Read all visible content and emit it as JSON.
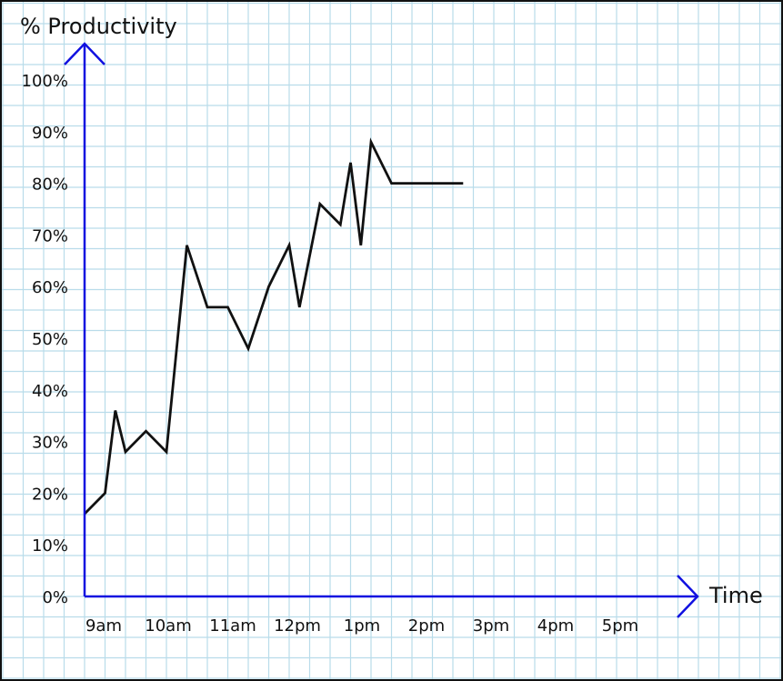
{
  "colors": {
    "grid": "#b9dcea",
    "axis": "#1010e0",
    "line": "#111111",
    "border": "#111111"
  },
  "chart_data": {
    "type": "line",
    "title": "",
    "ylabel": "% Productivity",
    "xlabel": "Time",
    "ylim": [
      0,
      100
    ],
    "yticks": [
      "0%",
      "10%",
      "20%",
      "30%",
      "40%",
      "50%",
      "60%",
      "70%",
      "80%",
      "90%",
      "100%"
    ],
    "xticks": [
      "9am",
      "10am",
      "11am",
      "12pm",
      "1pm",
      "2pm",
      "3pm",
      "4pm",
      "5pm"
    ],
    "grid": true,
    "series": [
      {
        "x": [
          "9:00",
          "9:20",
          "9:30",
          "9:40",
          "10:00",
          "10:20",
          "10:40",
          "11:00",
          "11:20",
          "11:40",
          "12:00",
          "12:20",
          "12:30",
          "12:50",
          "13:10",
          "13:20",
          "13:30",
          "13:40",
          "14:00",
          "14:20",
          "14:40",
          "15:00",
          "15:10"
        ],
        "y": [
          16,
          20,
          36,
          28,
          32,
          28,
          68,
          56,
          56,
          48,
          60,
          68,
          56,
          76,
          72,
          84,
          68,
          88,
          80,
          80,
          80,
          80,
          80
        ]
      }
    ]
  }
}
